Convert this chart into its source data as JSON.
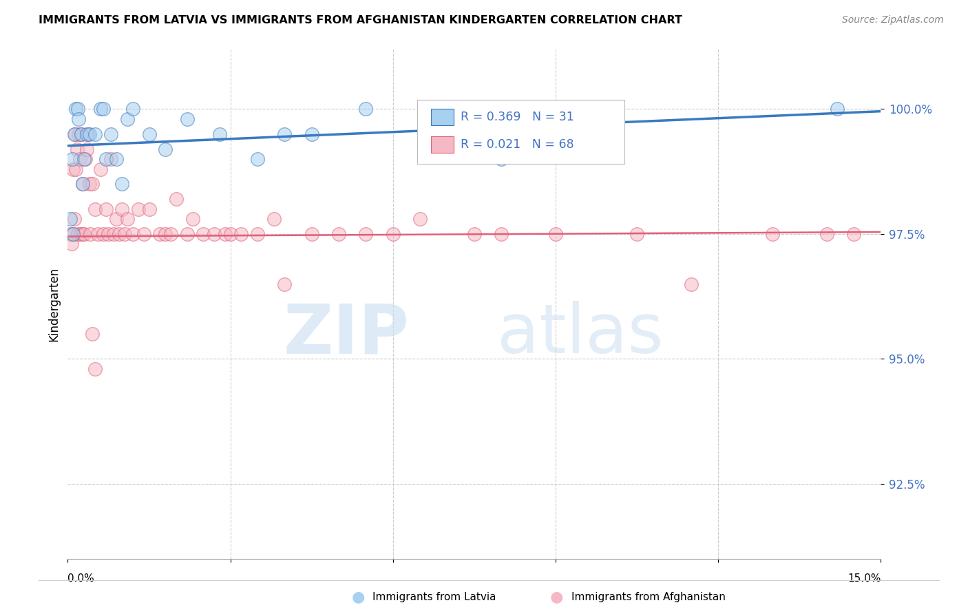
{
  "title": "IMMIGRANTS FROM LATVIA VS IMMIGRANTS FROM AFGHANISTAN KINDERGARTEN CORRELATION CHART",
  "source": "Source: ZipAtlas.com",
  "ylabel": "Kindergarten",
  "ytick_labels": [
    "92.5%",
    "95.0%",
    "97.5%",
    "100.0%"
  ],
  "ytick_values": [
    92.5,
    95.0,
    97.5,
    100.0
  ],
  "xmin": 0.0,
  "xmax": 15.0,
  "ymin": 91.0,
  "ymax": 101.2,
  "color_latvia": "#a8d0f0",
  "color_afghanistan": "#f5b8c4",
  "line_color_latvia": "#3a7abf",
  "line_color_afghanistan": "#e0607a",
  "watermark_zip": "ZIP",
  "watermark_atlas": "atlas",
  "latvia_x": [
    0.05,
    0.08,
    0.1,
    0.12,
    0.15,
    0.18,
    0.2,
    0.25,
    0.28,
    0.3,
    0.35,
    0.4,
    0.5,
    0.6,
    0.65,
    0.7,
    0.8,
    0.9,
    1.0,
    1.1,
    1.2,
    1.5,
    1.8,
    2.2,
    2.8,
    3.5,
    4.0,
    4.5,
    5.5,
    8.0,
    14.2
  ],
  "latvia_y": [
    97.8,
    99.0,
    97.5,
    99.5,
    100.0,
    100.0,
    99.8,
    99.5,
    98.5,
    99.0,
    99.5,
    99.5,
    99.5,
    100.0,
    100.0,
    99.0,
    99.5,
    99.0,
    98.5,
    99.8,
    100.0,
    99.5,
    99.2,
    99.8,
    99.5,
    99.0,
    99.5,
    99.5,
    100.0,
    99.0,
    100.0
  ],
  "afghanistan_x": [
    0.05,
    0.07,
    0.09,
    0.1,
    0.12,
    0.14,
    0.15,
    0.17,
    0.18,
    0.2,
    0.22,
    0.24,
    0.25,
    0.27,
    0.28,
    0.3,
    0.32,
    0.35,
    0.38,
    0.4,
    0.42,
    0.45,
    0.5,
    0.55,
    0.6,
    0.65,
    0.7,
    0.75,
    0.8,
    0.85,
    0.9,
    0.95,
    1.0,
    1.05,
    1.1,
    1.2,
    1.3,
    1.4,
    1.5,
    1.7,
    1.8,
    1.9,
    2.0,
    2.2,
    2.3,
    2.5,
    2.7,
    2.9,
    3.0,
    3.2,
    3.5,
    3.8,
    4.0,
    4.5,
    5.0,
    5.5,
    6.0,
    6.5,
    7.5,
    8.0,
    9.0,
    10.5,
    11.5,
    13.0,
    14.0,
    14.5,
    0.45,
    0.5
  ],
  "afghanistan_y": [
    97.5,
    97.3,
    98.8,
    97.5,
    97.8,
    99.5,
    98.8,
    99.2,
    97.5,
    99.5,
    99.0,
    97.5,
    99.5,
    97.5,
    98.5,
    97.5,
    99.0,
    99.2,
    99.5,
    98.5,
    97.5,
    98.5,
    98.0,
    97.5,
    98.8,
    97.5,
    98.0,
    97.5,
    99.0,
    97.5,
    97.8,
    97.5,
    98.0,
    97.5,
    97.8,
    97.5,
    98.0,
    97.5,
    98.0,
    97.5,
    97.5,
    97.5,
    98.2,
    97.5,
    97.8,
    97.5,
    97.5,
    97.5,
    97.5,
    97.5,
    97.5,
    97.8,
    96.5,
    97.5,
    97.5,
    97.5,
    97.5,
    97.8,
    97.5,
    97.5,
    97.5,
    97.5,
    96.5,
    97.5,
    97.5,
    97.5,
    95.5,
    94.8
  ]
}
